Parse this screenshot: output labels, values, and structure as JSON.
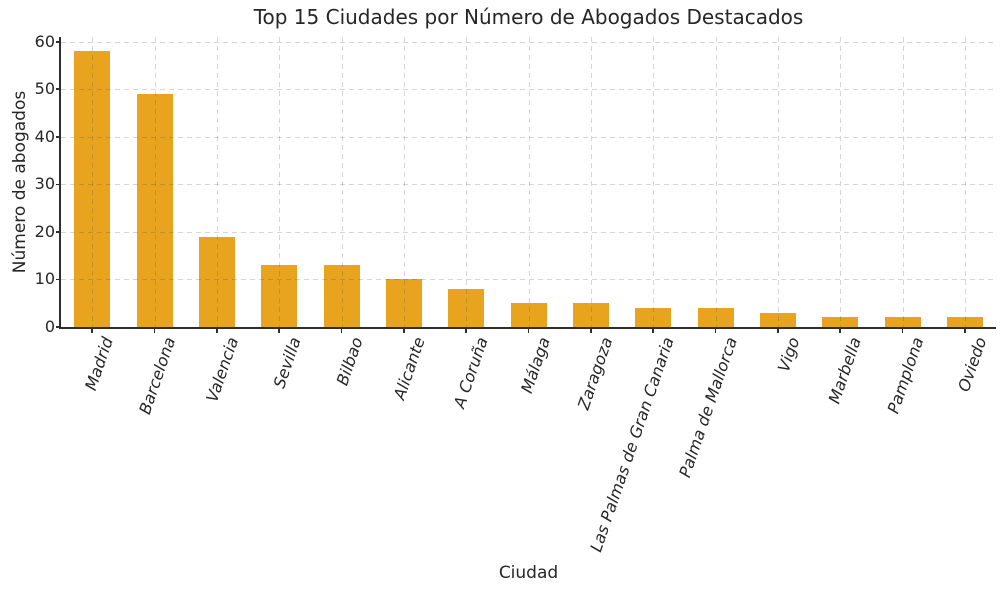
{
  "chart_data": {
    "type": "bar",
    "title": "Top 15 Ciudades por Número de Abogados Destacados",
    "xlabel": "Ciudad",
    "ylabel": "Número de abogados",
    "categories": [
      "Madrid",
      "Barcelona",
      "Valencia",
      "Sevilla",
      "Bilbao",
      "Alicante",
      "A Coruña",
      "Málaga",
      "Zaragoza",
      "Las Palmas de Gran Canaria",
      "Palma de Mallorca",
      "Vigo",
      "Marbella",
      "Pamplona",
      "Oviedo"
    ],
    "values": [
      58,
      49,
      19,
      13,
      13,
      10,
      8,
      5,
      5,
      4,
      4,
      3,
      2,
      2,
      2
    ],
    "yticks": [
      0,
      10,
      20,
      30,
      40,
      50,
      60
    ],
    "ylim": [
      0,
      61
    ],
    "bar_color": "#E8A41E",
    "spine_color": "#2e2e2e",
    "grid": "dashed, both axes, drawn over bars",
    "legend": "none",
    "xtick_rotation_deg": 71,
    "xtick_style": "italic"
  }
}
